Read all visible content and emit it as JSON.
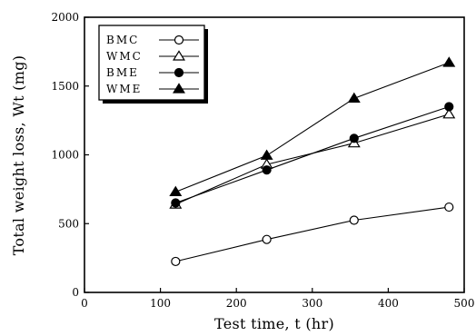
{
  "chart_data": {
    "type": "line",
    "title": "",
    "xlabel": "Test time, t (hr)",
    "ylabel": "Total weight loss, Wt (mg)",
    "xlim": [
      0,
      500
    ],
    "ylim": [
      0,
      2000
    ],
    "xticks": [
      0,
      100,
      200,
      300,
      400,
      500
    ],
    "yticks": [
      0,
      500,
      1000,
      1500,
      2000
    ],
    "grid": false,
    "legend_position": "top-left",
    "series": [
      {
        "name": "BMC",
        "marker": "circle-open",
        "x": [
          120,
          240,
          355,
          480
        ],
        "y": [
          225,
          385,
          525,
          620
        ]
      },
      {
        "name": "WMC",
        "marker": "triangle-open",
        "x": [
          120,
          240,
          355,
          480
        ],
        "y": [
          640,
          930,
          1085,
          1295
        ]
      },
      {
        "name": "BME",
        "marker": "circle-filled",
        "x": [
          120,
          240,
          355,
          480
        ],
        "y": [
          650,
          890,
          1120,
          1350
        ]
      },
      {
        "name": "WME",
        "marker": "triangle-filled",
        "x": [
          120,
          240,
          355,
          480
        ],
        "y": [
          730,
          995,
          1410,
          1670
        ]
      }
    ]
  }
}
